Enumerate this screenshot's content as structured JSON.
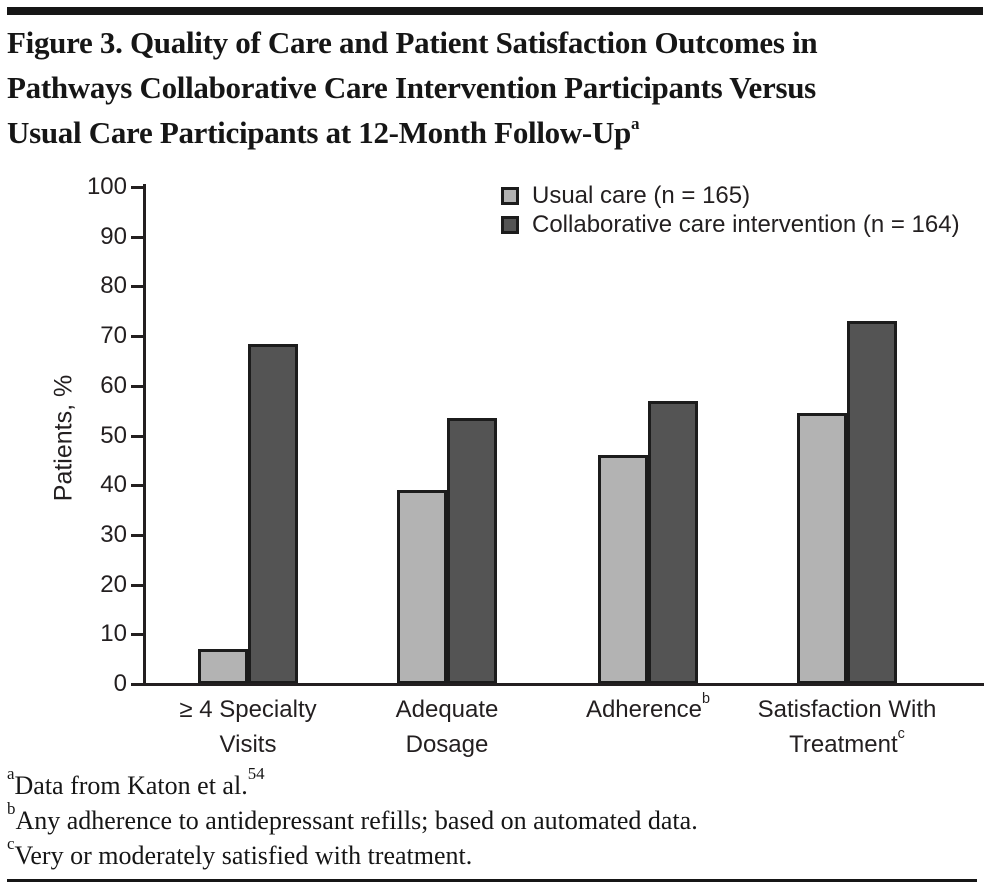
{
  "title": {
    "line1": "Figure 3. Quality of Care and Patient Satisfaction Outcomes in",
    "line2": "Pathways Collaborative Care Intervention Participants Versus",
    "line3": "Usual Care Participants at 12-Month Follow-Up",
    "superscript": "a"
  },
  "chart_data": {
    "type": "bar",
    "title": "",
    "xlabel": "",
    "ylabel": "Patients, %",
    "ylim": [
      0,
      100
    ],
    "yticks": [
      0,
      10,
      20,
      30,
      40,
      50,
      60,
      70,
      80,
      90,
      100
    ],
    "grid": false,
    "legend_position": "top-right",
    "categories": [
      "≥ 4 Specialty Visits",
      "Adequate Dosage",
      "Adherence",
      "Satisfaction With Treatment"
    ],
    "category_display": [
      {
        "lines": [
          "≥ 4 Specialty",
          "Visits"
        ],
        "sup": ""
      },
      {
        "lines": [
          "Adequate",
          "Dosage"
        ],
        "sup": ""
      },
      {
        "lines": [
          "Adherence"
        ],
        "sup": "b"
      },
      {
        "lines": [
          "Satisfaction With",
          "Treatment"
        ],
        "sup": "c"
      }
    ],
    "series": [
      {
        "name": "Usual care (n = 165)",
        "color": "#b3b3b3",
        "values": [
          7,
          39,
          46,
          54.5
        ]
      },
      {
        "name": "Collaborative care intervention (n = 164)",
        "color": "#545454",
        "values": [
          68.5,
          53.5,
          57,
          73
        ]
      }
    ]
  },
  "footnotes": [
    {
      "sup": "a",
      "text": "Data from Katon et al.",
      "trailing_sup": "54"
    },
    {
      "sup": "b",
      "text": "Any adherence to antidepressant refills; based on automated data.",
      "trailing_sup": ""
    },
    {
      "sup": "c",
      "text": "Very or moderately satisfied with treatment.",
      "trailing_sup": ""
    }
  ],
  "colors": {
    "bar_border": "#1c1c1c",
    "axis": "#231f20",
    "rule": "#161616",
    "usual_care_fill": "#b3b3b3",
    "collaborative_fill": "#545454"
  }
}
